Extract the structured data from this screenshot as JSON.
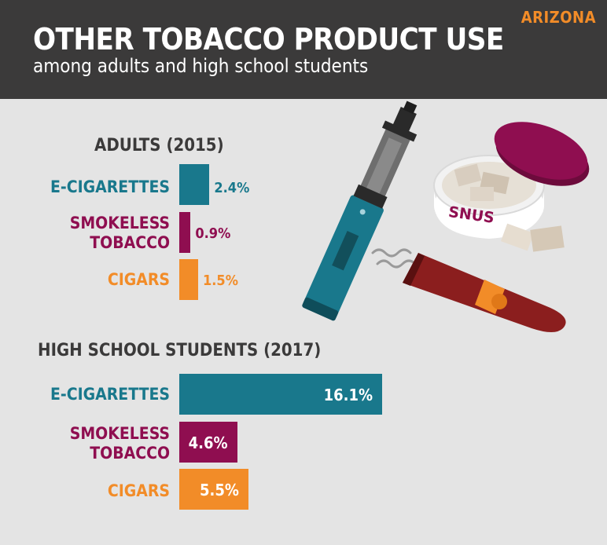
{
  "header": {
    "state": "ARIZONA",
    "title": "OTHER TOBACCO PRODUCT USE",
    "subtitle": "among adults and high school students"
  },
  "illustration": {
    "snus_label": "SNUS",
    "icons": [
      "e-cigarette-icon",
      "snus-tin-icon",
      "cigar-icon",
      "smoke-icon"
    ]
  },
  "colors": {
    "e_cigarettes": "#19788c",
    "smokeless_tobacco": "#8f0e50",
    "cigars": "#f28c28",
    "header_bg": "#3b3a3a",
    "background": "#e4e4e4"
  },
  "chart_data": [
    {
      "type": "bar",
      "orientation": "horizontal",
      "title": "ADULTS (2015)",
      "categories": [
        "E-CIGARETTES",
        "SMOKELESS\nTOBACCO",
        "CIGARS"
      ],
      "values": [
        2.4,
        0.9,
        1.5
      ],
      "value_labels": [
        "2.4%",
        "0.9%",
        "1.5%"
      ],
      "unit": "%"
    },
    {
      "type": "bar",
      "orientation": "horizontal",
      "title": "HIGH SCHOOL STUDENTS (2017)",
      "categories": [
        "E-CIGARETTES",
        "SMOKELESS\nTOBACCO",
        "CIGARS"
      ],
      "values": [
        16.1,
        4.6,
        5.5
      ],
      "value_labels": [
        "16.1%",
        "4.6%",
        "5.5%"
      ],
      "unit": "%"
    }
  ]
}
